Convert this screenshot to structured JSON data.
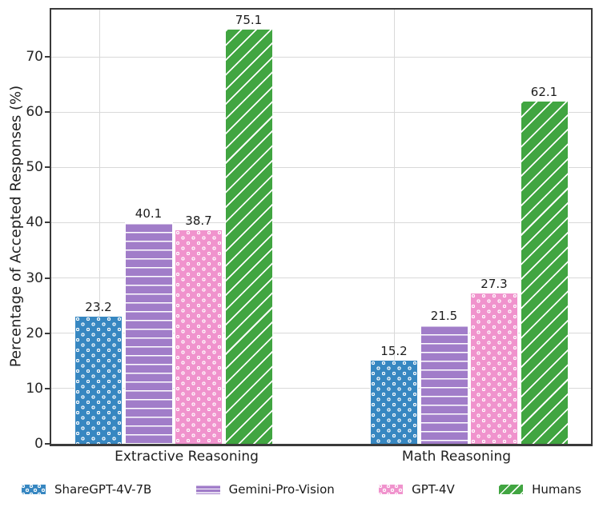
{
  "chart_data": {
    "type": "bar",
    "title": "",
    "categories": [
      "Extractive Reasoning",
      "Math Reasoning"
    ],
    "series": [
      {
        "name": "ShareGPT-4V-7B",
        "values": [
          23.2,
          15.2
        ],
        "color": "#3787c1",
        "hatch": "dots"
      },
      {
        "name": "Gemini-Pro-Vision",
        "values": [
          40.1,
          21.5
        ],
        "color": "#a17dc9",
        "hatch": "hlines"
      },
      {
        "name": "GPT-4V",
        "values": [
          38.7,
          27.3
        ],
        "color": "#f093cd",
        "hatch": "dots"
      },
      {
        "name": "Humans",
        "values": [
          75.1,
          62.1
        ],
        "color": "#41a541",
        "hatch": "diag"
      }
    ],
    "xlabel": "",
    "ylabel": "Percentage of Accepted Responses (%)",
    "yticks": [
      0,
      10,
      20,
      30,
      40,
      50,
      60,
      70
    ],
    "ylim": [
      0,
      79
    ],
    "bar_value_labels": [
      "23.2",
      "40.1",
      "38.7",
      "75.1",
      "15.2",
      "21.5",
      "27.3",
      "62.1"
    ],
    "grid": true,
    "legend_position": "bottom",
    "hatch_color": "#ffffff"
  },
  "colors": {
    "axis": "#3a3a3a",
    "grid": "#d9d9d9",
    "text": "#262626",
    "background": "#ffffff"
  }
}
